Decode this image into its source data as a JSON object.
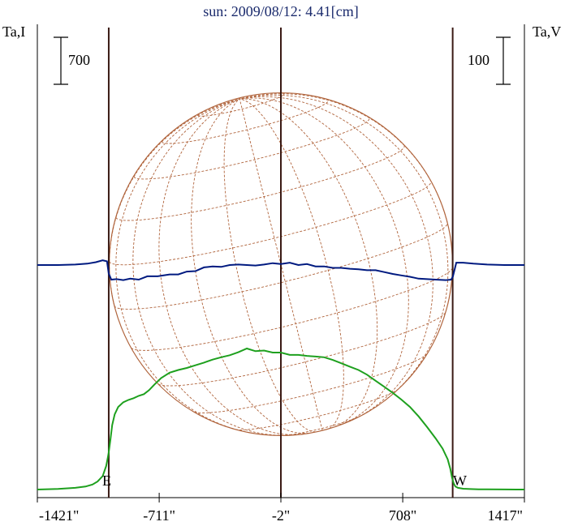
{
  "title": "sun: 2009/08/12: 4.41[cm]",
  "left_axis_label": "Ta,I",
  "right_axis_label": "Ta,V",
  "left_scale_label": "700",
  "right_scale_label": "100",
  "limb_labels": {
    "east": "E",
    "west": "W"
  },
  "colors": {
    "title": "#1a2a6c",
    "intensity": "#1ea01e",
    "polarization": "#001a80",
    "disk": "#b0643c",
    "grid": "#b0643c",
    "limb_lines": "#3a1a14",
    "axes": "#000000"
  },
  "chart_data": {
    "type": "line",
    "title": "sun: 2009/08/12: 4.41[cm]",
    "xlabel": "",
    "ylabel": "Ta,I",
    "y2label": "Ta,V",
    "x_ticks": [
      -1421,
      -711,
      -2,
      708,
      1417
    ],
    "x_tick_labels": [
      "-1421\"",
      "-711\"",
      "-2\"",
      "708\"",
      "1417\""
    ],
    "xlim": [
      -1421,
      1417
    ],
    "vertical_lines": [
      -1005,
      -2,
      999
    ],
    "solar_radius_arcsec": 1000,
    "grid": false,
    "series": [
      {
        "key": "I",
        "axis": "left",
        "scale_bar": 700,
        "x": [
          -1421,
          -1300,
          -1200,
          -1140,
          -1100,
          -1070,
          -1040,
          -1020,
          -1010,
          -1005,
          -995,
          -985,
          -970,
          -950,
          -920,
          -890,
          -860,
          -830,
          -800,
          -770,
          -740,
          -700,
          -650,
          -600,
          -550,
          -500,
          -450,
          -400,
          -350,
          -300,
          -250,
          -200,
          -150,
          -100,
          -50,
          -2,
          50,
          100,
          150,
          200,
          250,
          300,
          350,
          400,
          450,
          500,
          550,
          600,
          650,
          700,
          750,
          800,
          850,
          900,
          940,
          970,
          985,
          995,
          1005,
          1015,
          1030,
          1060,
          1100,
          1150,
          1200,
          1300,
          1417
        ],
        "y": [
          0,
          10,
          25,
          45,
          75,
          120,
          200,
          350,
          480,
          550,
          750,
          960,
          1120,
          1230,
          1300,
          1335,
          1360,
          1395,
          1420,
          1480,
          1560,
          1660,
          1740,
          1780,
          1810,
          1850,
          1890,
          1935,
          1970,
          2000,
          2045,
          2100,
          2060,
          2070,
          2040,
          2040,
          2005,
          2005,
          1990,
          1980,
          1970,
          1930,
          1880,
          1830,
          1780,
          1710,
          1620,
          1530,
          1440,
          1340,
          1230,
          1090,
          930,
          760,
          610,
          450,
          310,
          180,
          90,
          45,
          25,
          12,
          7,
          4,
          2,
          1,
          0
        ]
      },
      {
        "key": "V",
        "axis": "right",
        "scale_bar": 100,
        "x": [
          -1421,
          -1300,
          -1200,
          -1130,
          -1080,
          -1040,
          -1015,
          -1005,
          -990,
          -960,
          -920,
          -880,
          -830,
          -780,
          -720,
          -650,
          -600,
          -550,
          -500,
          -450,
          -400,
          -350,
          -300,
          -250,
          -200,
          -150,
          -100,
          -50,
          -2,
          50,
          100,
          150,
          200,
          250,
          300,
          350,
          400,
          450,
          500,
          550,
          600,
          650,
          700,
          750,
          800,
          850,
          900,
          960,
          990,
          1000,
          1020,
          1060,
          1120,
          1200,
          1300,
          1417
        ],
        "y": [
          0,
          0,
          1,
          3,
          6,
          10,
          8,
          -18,
          -31,
          -30,
          -32,
          -29,
          -31,
          -24,
          -24,
          -20,
          -20,
          -14,
          -13,
          -5,
          -3,
          -4,
          0,
          1,
          0,
          -1,
          1,
          4,
          2,
          5,
          0,
          2,
          -3,
          -3,
          -6,
          -6,
          -8,
          -9,
          -11,
          -11,
          -15,
          -19,
          -22,
          -25,
          -29,
          -30,
          -31,
          -32,
          -31,
          -25,
          5,
          5,
          3,
          1,
          0,
          0
        ]
      }
    ]
  }
}
